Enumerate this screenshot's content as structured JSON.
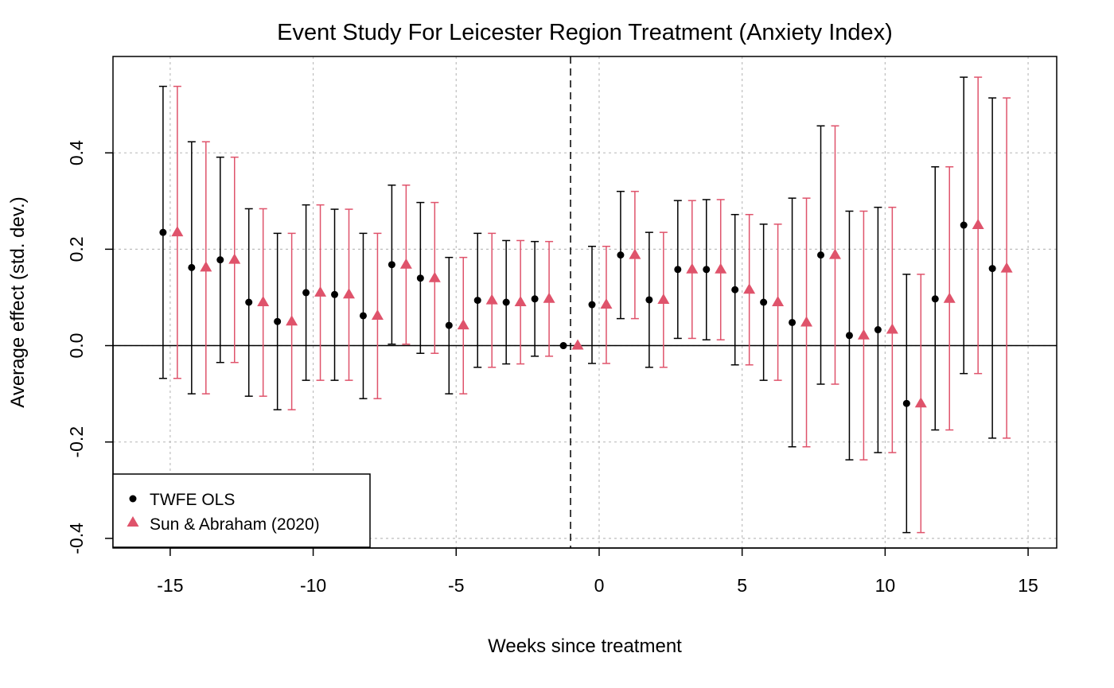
{
  "chart_data": {
    "type": "scatter",
    "title": "Event Study For Leicester Region Treatment (Anxiety Index)",
    "xlabel": "Weeks since treatment",
    "ylabel": "Average effect (std. dev.)",
    "xlim": [
      -17,
      16
    ],
    "ylim": [
      -0.42,
      0.6
    ],
    "x_ticks": [
      -15,
      -10,
      -5,
      0,
      5,
      10,
      15
    ],
    "x_tick_labels": [
      "-15",
      "-10",
      "-5",
      "0",
      "5",
      "10",
      "15"
    ],
    "y_ticks": [
      -0.4,
      -0.2,
      0.0,
      0.2,
      0.4
    ],
    "y_tick_labels": [
      "-0.4",
      "-0.2",
      "0.0",
      "0.2",
      "0.4"
    ],
    "grid": true,
    "reference_vline": -1,
    "reference_hline": 0,
    "legend_position": "bottom-left",
    "colors": {
      "twfe": "#000000",
      "sa": "#DF536B",
      "grid": "#BEBEBE"
    },
    "x": [
      -15,
      -14,
      -13,
      -12,
      -11,
      -10,
      -9,
      -8,
      -7,
      -6,
      -5,
      -4,
      -3,
      -2,
      -1,
      0,
      1,
      2,
      3,
      4,
      5,
      6,
      7,
      8,
      9,
      10,
      11,
      12,
      13,
      14
    ],
    "series": [
      {
        "name": "TWFE OLS",
        "marker": "circle",
        "estimate": [
          0.235,
          0.162,
          0.178,
          0.09,
          0.05,
          0.11,
          0.106,
          0.062,
          0.168,
          0.14,
          0.042,
          0.094,
          0.09,
          0.097,
          0.0,
          0.085,
          0.188,
          0.095,
          0.158,
          0.158,
          0.116,
          0.09,
          0.048,
          0.188,
          0.021,
          0.033,
          -0.12,
          0.097,
          0.25,
          0.16
        ],
        "ci_low": [
          -0.068,
          -0.1,
          -0.035,
          -0.105,
          -0.133,
          -0.072,
          -0.072,
          -0.11,
          0.003,
          -0.016,
          -0.1,
          -0.045,
          -0.038,
          -0.022,
          0.0,
          -0.037,
          0.056,
          -0.045,
          0.015,
          0.012,
          -0.04,
          -0.072,
          -0.21,
          -0.08,
          -0.237,
          -0.222,
          -0.388,
          -0.175,
          -0.058,
          -0.192
        ],
        "ci_high": [
          0.538,
          0.423,
          0.391,
          0.284,
          0.233,
          0.292,
          0.283,
          0.233,
          0.333,
          0.297,
          0.183,
          0.233,
          0.218,
          0.216,
          0.0,
          0.206,
          0.32,
          0.235,
          0.301,
          0.303,
          0.272,
          0.252,
          0.306,
          0.456,
          0.279,
          0.287,
          0.148,
          0.371,
          0.557,
          0.514
        ]
      },
      {
        "name": "Sun & Abraham (2020)",
        "marker": "triangle",
        "estimate": [
          0.235,
          0.162,
          0.178,
          0.09,
          0.05,
          0.11,
          0.106,
          0.062,
          0.168,
          0.14,
          0.042,
          0.094,
          0.09,
          0.097,
          0.0,
          0.085,
          0.188,
          0.095,
          0.158,
          0.158,
          0.116,
          0.09,
          0.048,
          0.188,
          0.021,
          0.033,
          -0.12,
          0.097,
          0.25,
          0.16
        ],
        "ci_low": [
          -0.068,
          -0.1,
          -0.035,
          -0.105,
          -0.133,
          -0.072,
          -0.072,
          -0.11,
          0.003,
          -0.016,
          -0.1,
          -0.045,
          -0.038,
          -0.022,
          0.0,
          -0.037,
          0.056,
          -0.045,
          0.015,
          0.012,
          -0.04,
          -0.072,
          -0.21,
          -0.08,
          -0.237,
          -0.222,
          -0.388,
          -0.175,
          -0.058,
          -0.192
        ],
        "ci_high": [
          0.538,
          0.423,
          0.391,
          0.284,
          0.233,
          0.292,
          0.283,
          0.233,
          0.333,
          0.297,
          0.183,
          0.233,
          0.218,
          0.216,
          0.0,
          0.206,
          0.32,
          0.235,
          0.301,
          0.303,
          0.272,
          0.252,
          0.306,
          0.456,
          0.279,
          0.287,
          0.148,
          0.371,
          0.557,
          0.514
        ]
      }
    ]
  }
}
